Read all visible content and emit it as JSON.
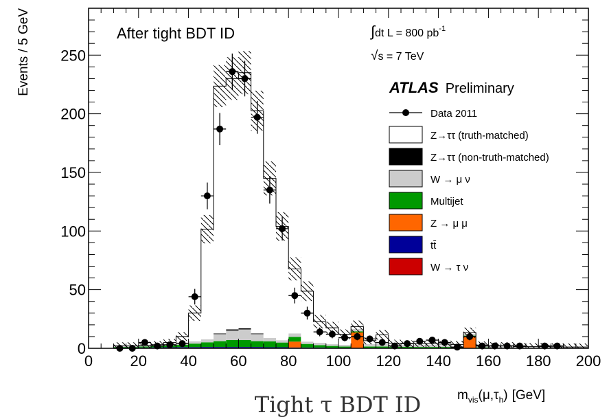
{
  "chart_data": {
    "type": "bar",
    "title": "",
    "xlabel_main": "m",
    "xlabel_sub": "vis",
    "xlabel_args_pre": "(μ,τ",
    "xlabel_args_sub": "h",
    "xlabel_args_post": ")",
    "xlabel_unit": "[GeV]",
    "ylabel": "Events / 5 GeV",
    "xlim": [
      0,
      200
    ],
    "ylim": [
      0,
      290
    ],
    "xticks": [
      0,
      20,
      40,
      60,
      80,
      100,
      120,
      140,
      160,
      180,
      200
    ],
    "xtick_labels": [
      "0",
      "20",
      "40",
      "60",
      "80",
      "100",
      "120",
      "140",
      "160",
      "180",
      "200"
    ],
    "yticks": [
      0,
      50,
      100,
      150,
      200,
      250
    ],
    "ytick_labels": [
      "0",
      "50",
      "100",
      "150",
      "200",
      "250"
    ],
    "bin_width": 5,
    "bin_lo": [
      0,
      5,
      10,
      15,
      20,
      25,
      30,
      35,
      40,
      45,
      50,
      55,
      60,
      65,
      70,
      75,
      80,
      85,
      90,
      95,
      100,
      105,
      110,
      115,
      120,
      125,
      130,
      135,
      140,
      145,
      150,
      155,
      160,
      165,
      170,
      175,
      180,
      185,
      190,
      195
    ],
    "stack_series": [
      {
        "name": "W → τ ν",
        "color": "#cc0000",
        "values": [
          0,
          0,
          0.3,
          0.3,
          0.4,
          0.4,
          0.5,
          0.5,
          0.5,
          0.5,
          0.5,
          0.5,
          0.5,
          0.5,
          0.4,
          0.4,
          0.3,
          0.3,
          0.3,
          0.2,
          0.2,
          0.2,
          0.2,
          0.2,
          0.1,
          0.1,
          0.1,
          0.1,
          0.1,
          0.1,
          0.1,
          0.1,
          0,
          0,
          0,
          0,
          0,
          0,
          0,
          0
        ]
      },
      {
        "name": "tt̄",
        "color": "#000099",
        "values": [
          0,
          0,
          0.3,
          0.3,
          0.3,
          0.4,
          0.4,
          0.5,
          0.5,
          0.6,
          0.6,
          0.6,
          0.6,
          0.6,
          0.5,
          0.5,
          0.4,
          0.4,
          0.4,
          0.3,
          0.3,
          0.3,
          0.3,
          0.3,
          0.2,
          0.2,
          0.2,
          0.2,
          0.2,
          0.2,
          0.2,
          0.2,
          0.1,
          0.1,
          0.1,
          0.1,
          0.1,
          0,
          0,
          0
        ]
      },
      {
        "name": "Z → μ μ",
        "color": "#ff6600",
        "values": [
          0,
          0,
          0,
          0,
          0,
          0,
          0,
          0,
          0,
          0,
          0,
          0,
          0,
          0,
          0,
          0,
          5,
          0,
          0,
          0,
          0,
          13,
          0,
          0,
          0,
          0,
          0,
          0,
          0,
          0,
          10,
          0,
          0,
          0,
          0,
          0,
          0,
          0,
          0,
          0
        ]
      },
      {
        "name": "Multijet",
        "color": "#009900",
        "values": [
          0,
          0,
          0.5,
          0.5,
          0.8,
          1,
          1.5,
          2,
          3,
          4,
          5,
          6,
          6,
          5,
          5,
          4,
          4,
          3,
          2,
          1.5,
          1,
          1,
          1,
          1,
          1,
          1,
          0.8,
          0.8,
          0.8,
          0.5,
          0.5,
          0.5,
          0.3,
          0.3,
          0.3,
          0.3,
          0.3,
          0.2,
          0.2,
          0.2
        ]
      },
      {
        "name": "W → μ ν",
        "color": "#cccccc",
        "values": [
          0,
          0,
          1,
          1,
          1,
          1.3,
          1.5,
          2,
          2,
          2.5,
          6,
          8,
          9,
          6,
          3,
          2,
          3,
          2,
          2,
          1.5,
          1.5,
          2,
          2,
          3,
          1.5,
          1.5,
          2,
          2,
          1.5,
          1.5,
          1.5,
          1,
          0.8,
          0.8,
          0.5,
          0.5,
          0.5,
          0.5,
          0.4,
          0.4
        ]
      },
      {
        "name": "Z→ττ (non-truth-matched)",
        "color": "#000000",
        "values": [
          0,
          0,
          0,
          0,
          0,
          0,
          0,
          0,
          0,
          0,
          0.5,
          1,
          1,
          0.5,
          0,
          0,
          0,
          0,
          0,
          0,
          0,
          0,
          0,
          0,
          0,
          0,
          0,
          0,
          0,
          0,
          0,
          0,
          0,
          0,
          0,
          0,
          0,
          0,
          0,
          0
        ]
      },
      {
        "name": "Z→ττ (truth-matched)",
        "color": "#ffffff",
        "values": [
          0,
          0,
          0,
          0,
          0,
          0,
          1,
          5,
          24,
          94,
          211,
          214,
          218,
          190,
          136,
          97,
          55,
          43,
          18,
          14,
          9,
          2,
          3,
          7,
          1.5,
          1,
          1,
          1,
          1,
          1,
          1,
          1,
          1,
          1,
          0.5,
          0.5,
          0.5,
          0.5,
          0.5,
          0.5
        ]
      }
    ],
    "data_series": {
      "name": "Data 2011",
      "x": [
        12.5,
        17.5,
        22.5,
        27.5,
        32.5,
        37.5,
        42.5,
        47.5,
        52.5,
        57.5,
        62.5,
        67.5,
        72.5,
        77.5,
        82.5,
        87.5,
        92.5,
        97.5,
        102.5,
        107.5,
        112.5,
        117.5,
        122.5,
        127.5,
        132.5,
        137.5,
        142.5,
        147.5,
        152.5,
        157.5,
        162.5,
        167.5,
        172.5,
        182.5,
        187.5
      ],
      "y": [
        0,
        0,
        5,
        2,
        3,
        4,
        44,
        130,
        187,
        236,
        230,
        197,
        135,
        102,
        45,
        30,
        14,
        12,
        9,
        10,
        8,
        5,
        2,
        4,
        6,
        7,
        5,
        1,
        10,
        2,
        2,
        2,
        2,
        2,
        2
      ]
    },
    "legend": {
      "placement": "top-right",
      "entries": [
        {
          "label": "Data 2011",
          "kind": "marker"
        },
        {
          "label": "Z→ττ (truth-matched)",
          "kind": "box",
          "color": "#ffffff"
        },
        {
          "label": "Z→ττ (non-truth-matched)",
          "kind": "box",
          "color": "#000000"
        },
        {
          "label": "W → μ ν",
          "kind": "box",
          "color": "#cccccc"
        },
        {
          "label": "Multijet",
          "kind": "box",
          "color": "#009900"
        },
        {
          "label": "Z → μ μ",
          "kind": "box",
          "color": "#ff6600"
        },
        {
          "label": "tt̄",
          "kind": "box",
          "color": "#000099"
        },
        {
          "label": "W → τ ν",
          "kind": "box",
          "color": "#cc0000"
        }
      ]
    },
    "annotations": {
      "selection": "After tight BDT ID",
      "lumi_int": "∫",
      "lumi_text": "dt L = 800 pb",
      "lumi_sup": "-1",
      "energy_root": "√",
      "energy_s": "s",
      "energy_text": " = 7 TeV",
      "atlas": "ATLAS",
      "preliminary": "Preliminary",
      "caption": "Tight τ BDT ID"
    },
    "uncertainty_band": "hatched",
    "grid": false
  }
}
